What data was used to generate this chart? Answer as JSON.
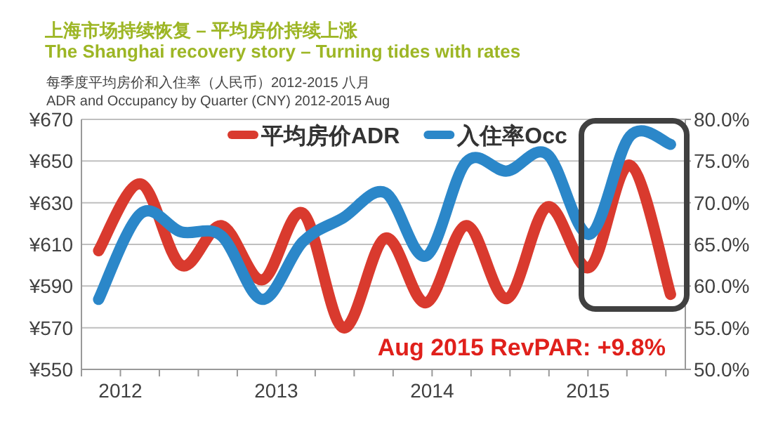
{
  "chart_data": {
    "type": "line",
    "title": "上海市场持续恢复 – 平均房价持续上涨\nThe Shanghai recovery story – Turning tides with rates",
    "subtitle": "每季度平均房价和入住率（人民币）2012-2015 八月\nADR and Occupancy by Quarter (CNY) 2012-2015 Aug",
    "x": [
      2011.86,
      2012.13,
      2012.39,
      2012.65,
      2012.91,
      2013.17,
      2013.43,
      2013.7,
      2013.96,
      2014.22,
      2014.48,
      2014.74,
      2015.01,
      2015.27,
      2015.53
    ],
    "series": [
      {
        "name": "平均房价ADR",
        "color": "#d93a2e",
        "values": [
          607,
          639,
          600,
          619,
          593,
          625,
          570,
          613,
          582,
          619,
          584,
          628,
          599,
          648,
          586
        ]
      },
      {
        "name": "入住率Occ",
        "color": "#2b87c9",
        "axis": "y2",
        "values": [
          58.4,
          68.7,
          66.5,
          66.0,
          58.4,
          65.3,
          68.2,
          71.2,
          63.6,
          74.9,
          73.8,
          75.8,
          66.2,
          78.0,
          77.0
        ]
      }
    ],
    "xlim": [
      2011.75,
      2015.625
    ],
    "xticks": [
      {
        "value": 2011.75,
        "label": null
      },
      2012,
      {
        "value": 2012.25,
        "label": null
      },
      {
        "value": 2012.5,
        "label": null
      },
      {
        "value": 2012.75,
        "label": null
      },
      2013,
      {
        "value": 2013.25,
        "label": null
      },
      {
        "value": 2013.5,
        "label": null
      },
      {
        "value": 2013.75,
        "label": null
      },
      2014,
      {
        "value": 2014.25,
        "label": null
      },
      {
        "value": 2014.5,
        "label": null
      },
      {
        "value": 2014.75,
        "label": null
      },
      2015,
      {
        "value": 2015.25,
        "label": null
      },
      {
        "value": 2015.5,
        "label": null
      }
    ],
    "ylim": [
      550,
      670
    ],
    "yticks": [
      {
        "value": 550,
        "label": "¥550"
      },
      {
        "value": 570,
        "label": "¥570"
      },
      {
        "value": 590,
        "label": "¥590"
      },
      {
        "value": 610,
        "label": "¥610"
      },
      {
        "value": 630,
        "label": "¥630"
      },
      {
        "value": 650,
        "label": "¥650"
      },
      {
        "value": 670,
        "label": "¥670"
      }
    ],
    "y2lim": [
      50,
      80
    ],
    "y2ticks": [
      {
        "value": 50,
        "label": "50.0%"
      },
      {
        "value": 55,
        "label": "55.0%"
      },
      {
        "value": 60,
        "label": "60.0%"
      },
      {
        "value": 65,
        "label": "65.0%"
      },
      {
        "value": 70,
        "label": "70.0%"
      },
      {
        "value": 75,
        "label": "75.0%"
      },
      {
        "value": 80,
        "label": "80.0%"
      }
    ],
    "grid": "y",
    "legend": "top",
    "marker": "none",
    "line_style": "solid",
    "annotations": [
      "Aug 2015 RevPAR: +9.8%"
    ]
  }
}
